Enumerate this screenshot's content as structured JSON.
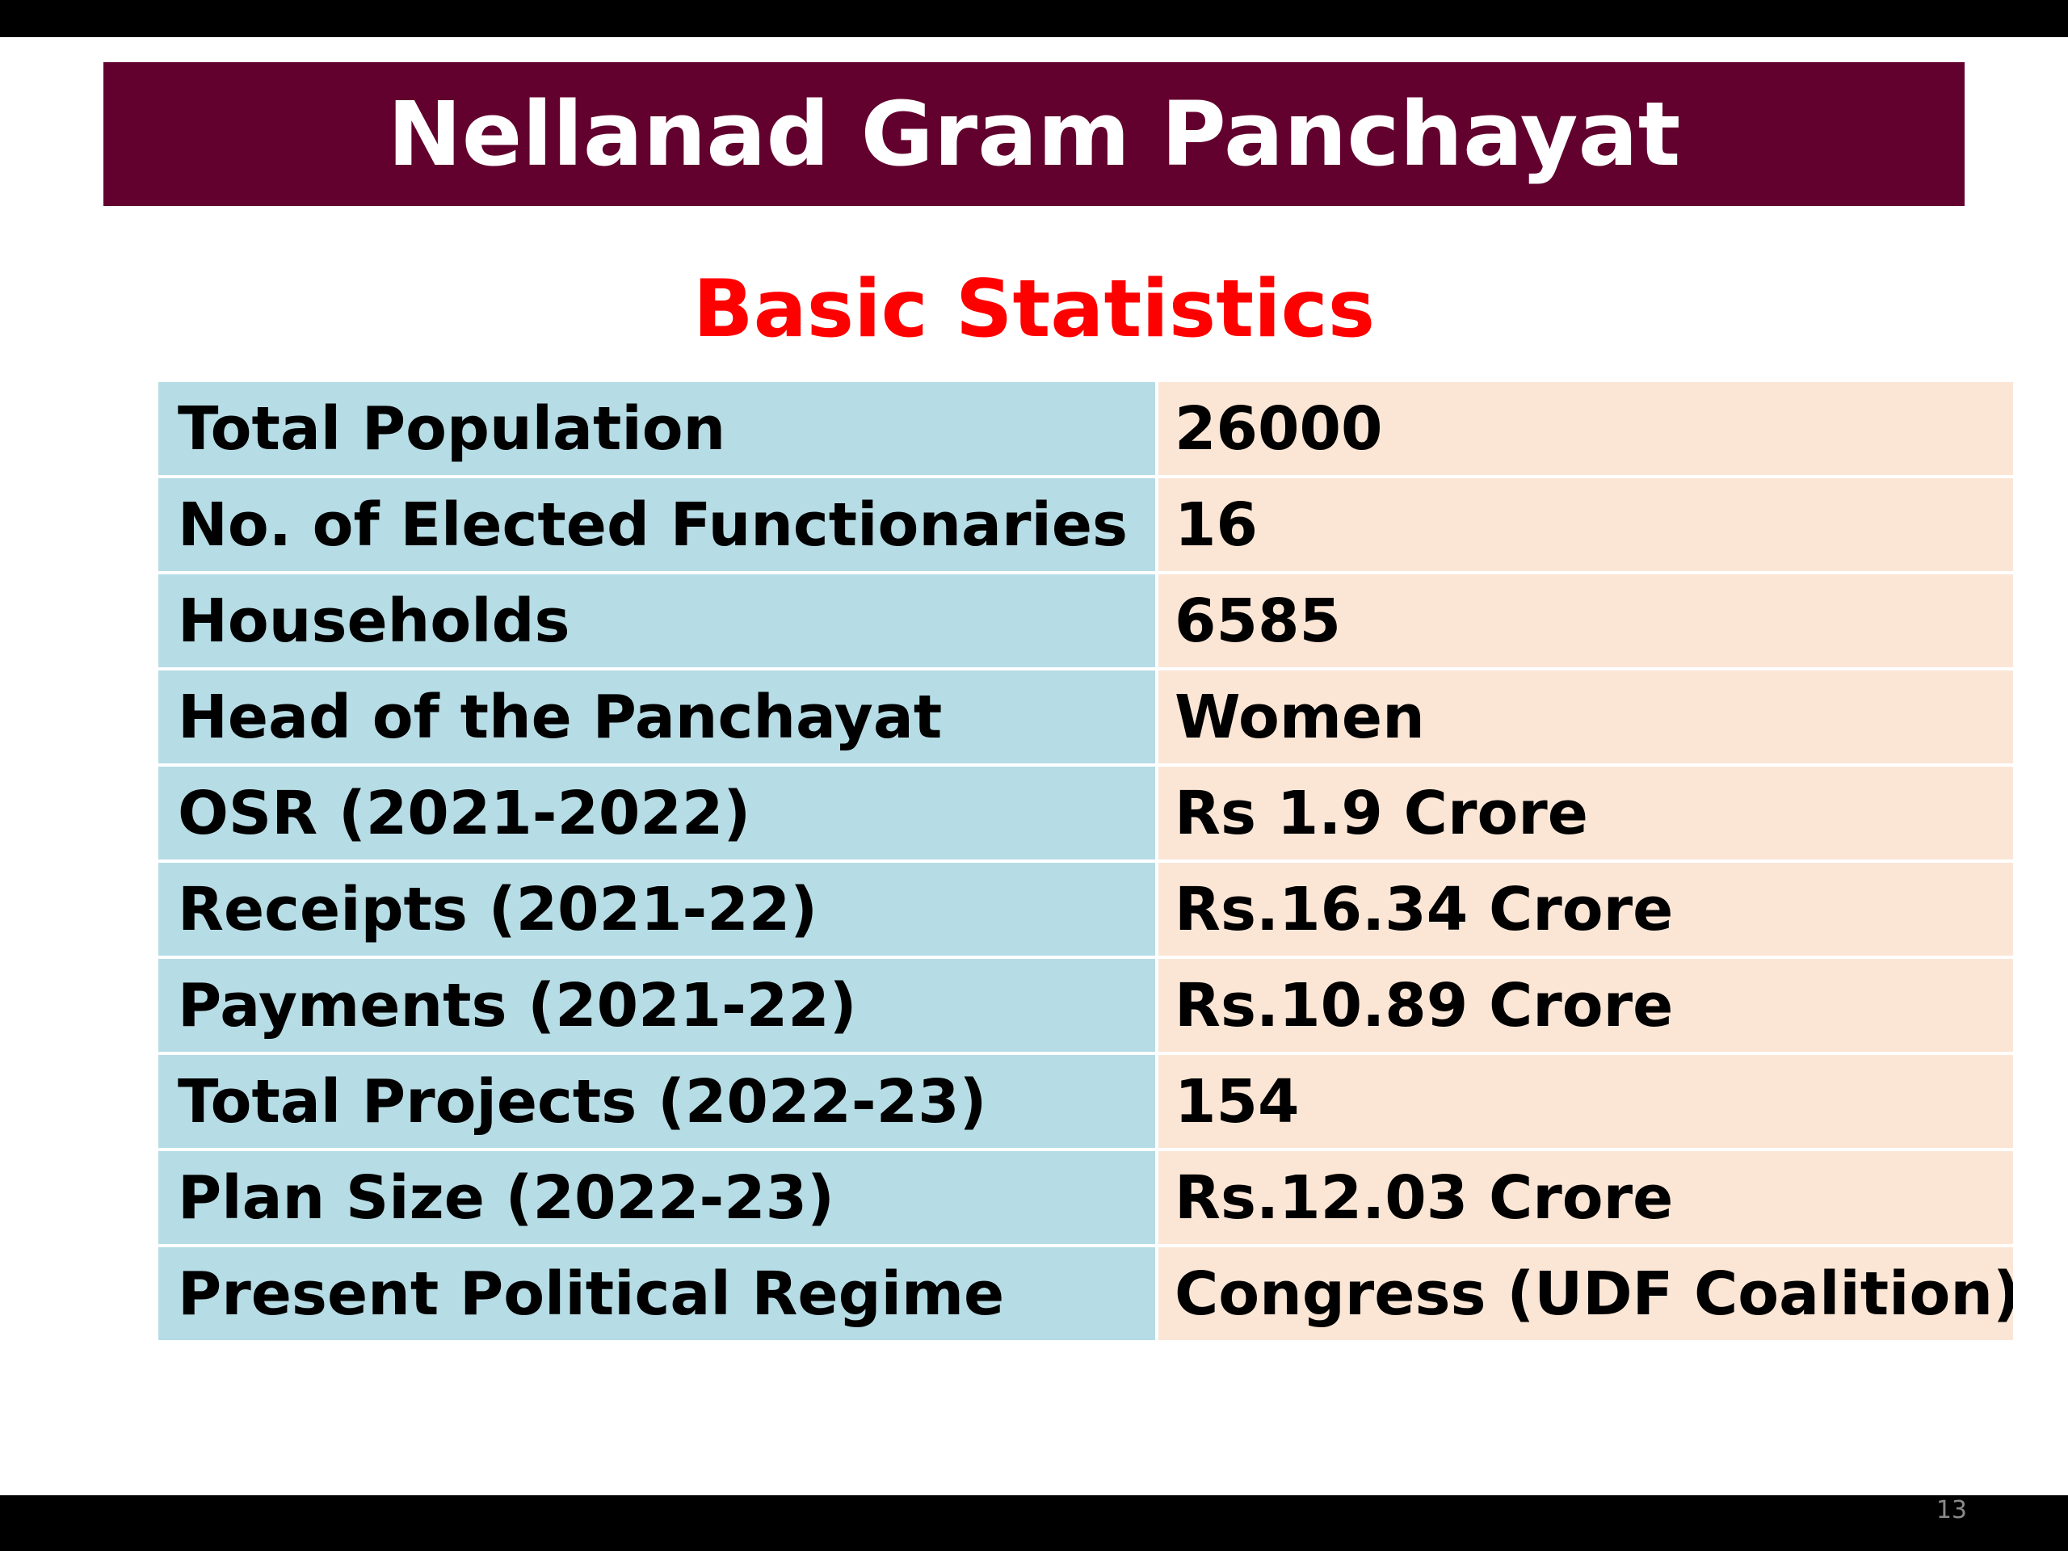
{
  "slide": {
    "title": "Nellanad Gram Panchayat",
    "subtitle": "Basic Statistics",
    "page_number": "13",
    "colors": {
      "banner": "#62002e",
      "subtitle": "#ff0000",
      "label_cell": "#b6dce5",
      "value_cell": "#fbe6d6"
    }
  },
  "stats": {
    "rows": [
      {
        "label": "Total Population",
        "value": "26000"
      },
      {
        "label": "No. of Elected Functionaries",
        "value": "16"
      },
      {
        "label": "Households",
        "value": "6585"
      },
      {
        "label": "Head of the Panchayat",
        "value": "Women"
      },
      {
        "label": "OSR (2021-2022)",
        "value": "Rs 1.9 Crore"
      },
      {
        "label": "Receipts (2021-22)",
        "value": "Rs.16.34 Crore"
      },
      {
        "label": "Payments (2021-22)",
        "value": "Rs.10.89 Crore"
      },
      {
        "label": "Total Projects (2022-23)",
        "value": "154"
      },
      {
        "label": "Plan Size (2022-23)",
        "value": "Rs.12.03 Crore"
      },
      {
        "label": "Present Political Regime",
        "value": "Congress (UDF Coalition)"
      }
    ]
  }
}
